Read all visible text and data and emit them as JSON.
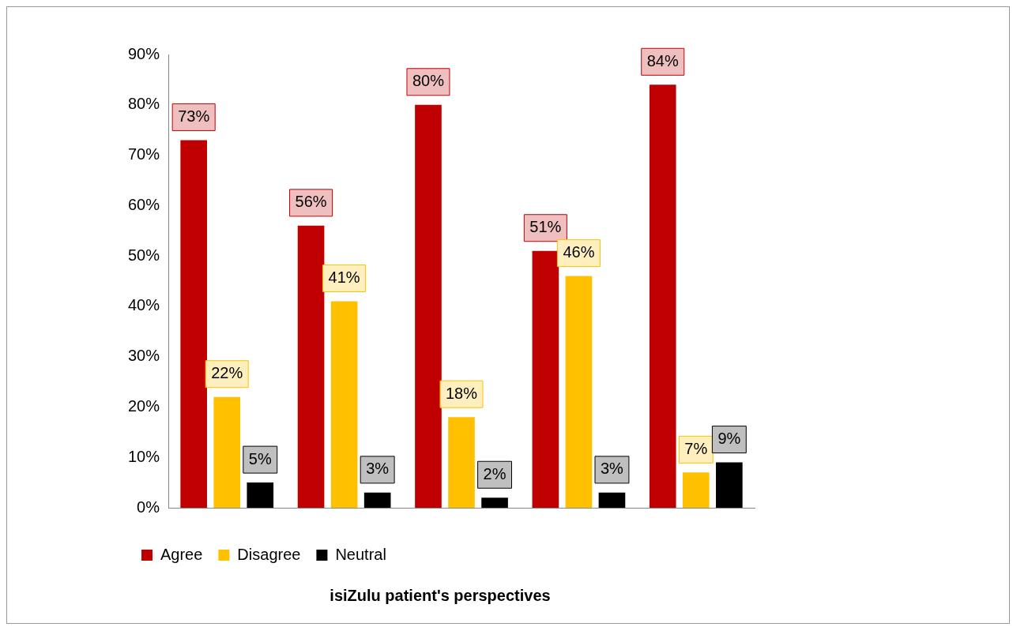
{
  "chart_data": {
    "type": "bar",
    "title": "isiZulu patient's perspectives",
    "categories": [
      null,
      null,
      null,
      null,
      null
    ],
    "series": [
      {
        "name": "Agree",
        "color": "#c00000",
        "values": [
          73,
          56,
          80,
          51,
          84
        ],
        "value_labels": [
          "73%",
          "56%",
          "80%",
          "51%",
          "84%"
        ]
      },
      {
        "name": "Disagree",
        "color": "#ffc000",
        "values": [
          22,
          41,
          18,
          46,
          7
        ],
        "value_labels": [
          "22%",
          "41%",
          "18%",
          "46%",
          "7%"
        ]
      },
      {
        "name": "Neutral",
        "color": "#000000",
        "values": [
          5,
          3,
          2,
          3,
          9
        ],
        "value_labels": [
          "5%",
          "3%",
          "2%",
          "3%",
          "9%"
        ]
      }
    ],
    "ylim": [
      0,
      90
    ],
    "yticks": [
      {
        "value": 0,
        "label": "0%"
      },
      {
        "value": 10,
        "label": "10%"
      },
      {
        "value": 20,
        "label": "20%"
      },
      {
        "value": 30,
        "label": "30%"
      },
      {
        "value": 40,
        "label": "40%"
      },
      {
        "value": 50,
        "label": "50%"
      },
      {
        "value": 60,
        "label": "60%"
      },
      {
        "value": 70,
        "label": "70%"
      },
      {
        "value": 80,
        "label": "80%"
      },
      {
        "value": 90,
        "label": "90%"
      }
    ],
    "grid": false,
    "legend": "bottom left"
  }
}
